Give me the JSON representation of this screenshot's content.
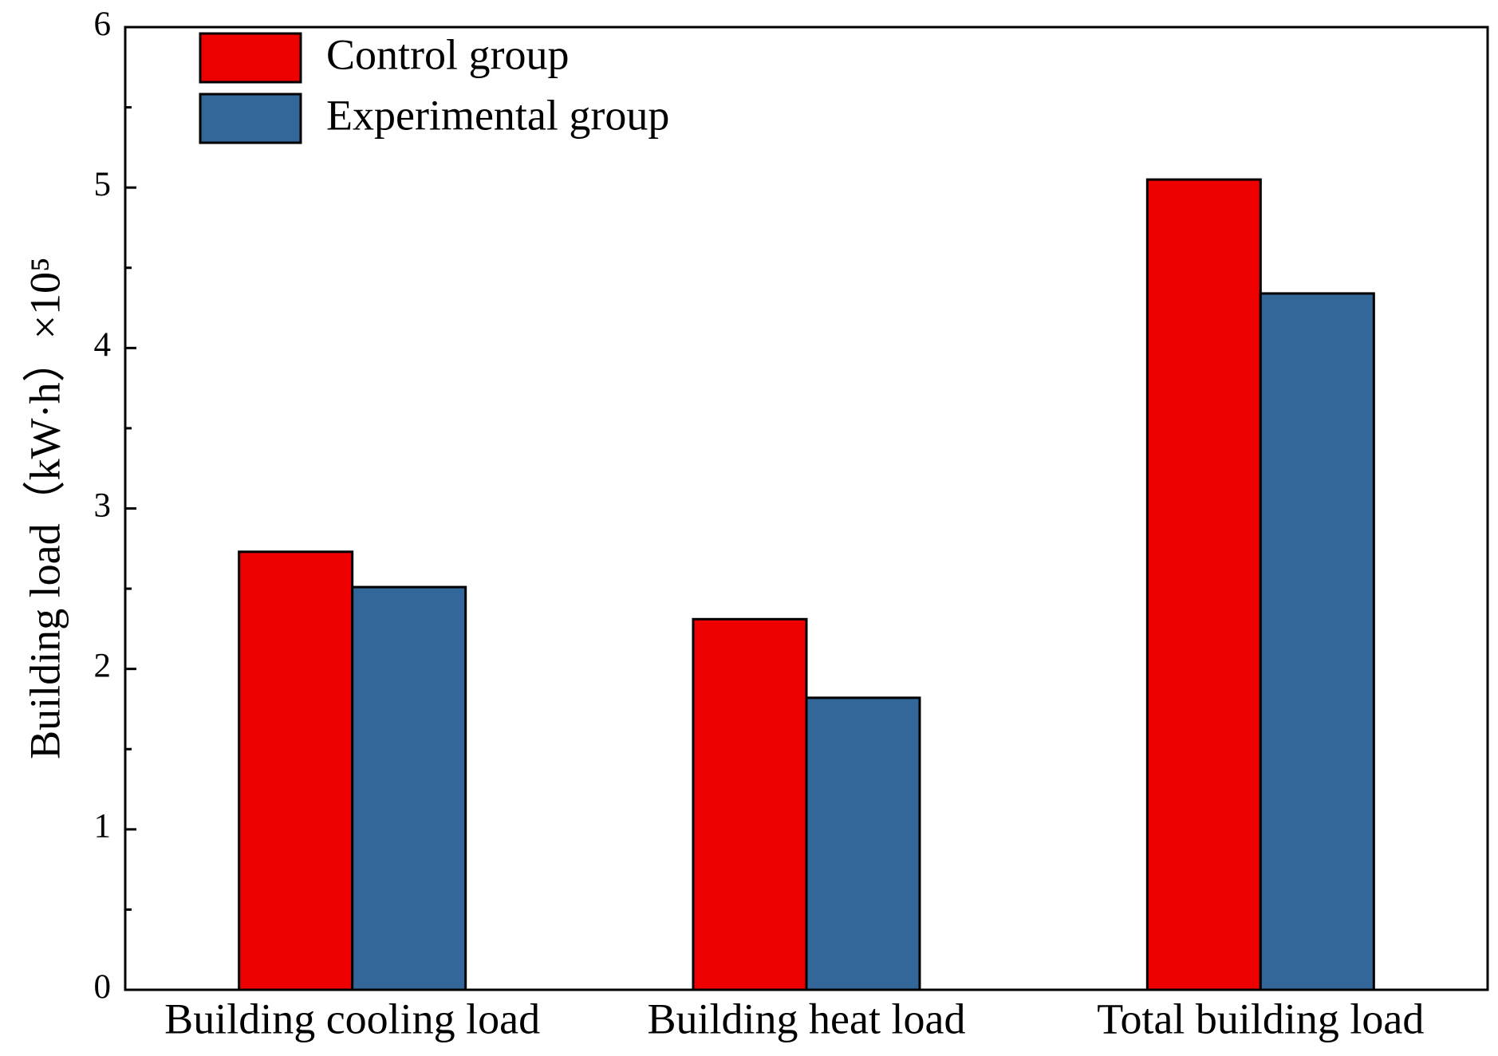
{
  "chart_data": {
    "type": "bar",
    "ylabel": "Building load（kW·h）×10⁵",
    "categories": [
      "Building cooling load",
      "Building heat load",
      "Total building load"
    ],
    "series": [
      {
        "name": "Control group",
        "color": "#ee0000",
        "values": [
          2.73,
          2.31,
          5.05
        ]
      },
      {
        "name": "Experimental group",
        "color": "#336699",
        "values": [
          2.51,
          1.82,
          4.34
        ]
      }
    ],
    "ylim": [
      0,
      6
    ],
    "yticks": [
      0,
      1,
      2,
      3,
      4,
      5,
      6
    ],
    "yminorticks": [
      0.5,
      1.5,
      2.5,
      3.5,
      4.5,
      5.5
    ],
    "legend": "upper left"
  }
}
